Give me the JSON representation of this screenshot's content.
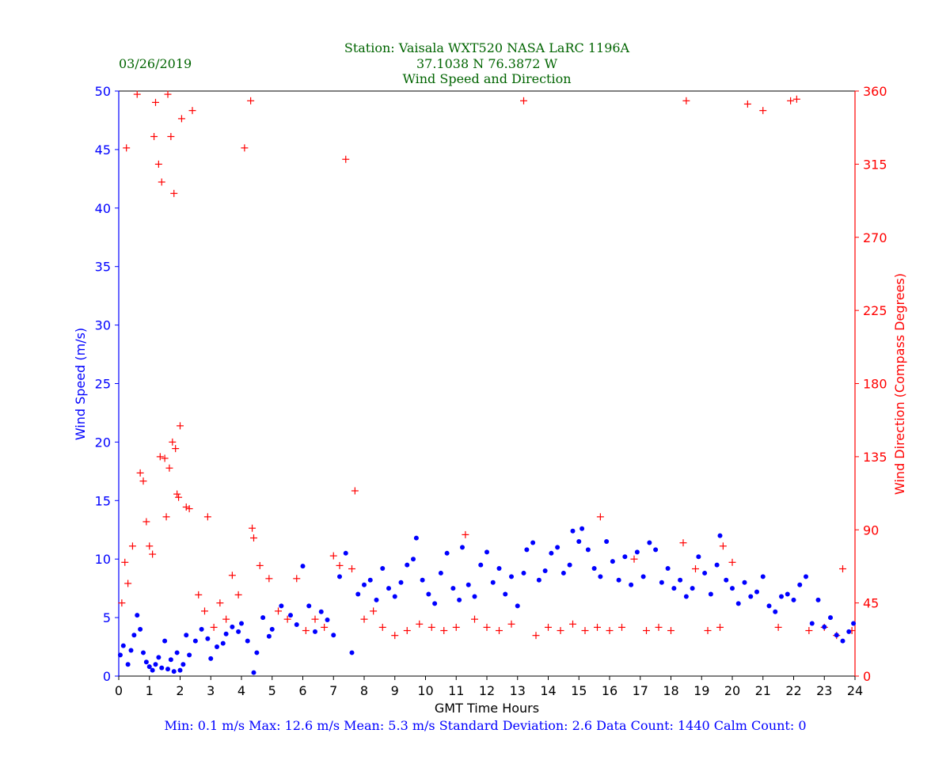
{
  "header": {
    "date": "03/26/2019",
    "station": "Station:  Vaisala WXT520  NASA LaRC 1196A",
    "location": "37.1038 N 76.3872 W",
    "subtitle": "Wind Speed and Direction"
  },
  "footer": {
    "stats": "Min: 0.1 m/s   Max: 12.6 m/s   Mean: 5.3 m/s  Standard Deviation: 2.6  Data Count: 1440  Calm Count:  0"
  },
  "colors": {
    "speed": "#0000ff",
    "direction": "#ff0000",
    "title": "#006400"
  },
  "chart_data": {
    "type": "scatter",
    "xlabel": "GMT Time Hours",
    "ylabel_left": "Wind Speed (m/s)",
    "ylabel_right": "Wind Direction (Compass Degrees)",
    "xlim": [
      0,
      24
    ],
    "ylim_left": [
      0,
      50
    ],
    "ylim_right": [
      0,
      360
    ],
    "x_ticks": [
      0,
      1,
      2,
      3,
      4,
      5,
      6,
      7,
      8,
      9,
      10,
      11,
      12,
      13,
      14,
      15,
      16,
      17,
      18,
      19,
      20,
      21,
      22,
      23,
      24
    ],
    "y_ticks_left": [
      0,
      5,
      10,
      15,
      20,
      25,
      30,
      35,
      40,
      45,
      50
    ],
    "y_ticks_right": [
      0,
      45,
      90,
      135,
      180,
      225,
      270,
      315,
      360
    ],
    "grid": false,
    "series": [
      {
        "name": "Wind Speed",
        "axis": "left",
        "marker": "dot",
        "points": [
          [
            0.05,
            1.8
          ],
          [
            0.15,
            2.6
          ],
          [
            0.3,
            1.0
          ],
          [
            0.4,
            2.2
          ],
          [
            0.5,
            3.5
          ],
          [
            0.6,
            5.2
          ],
          [
            0.7,
            4.0
          ],
          [
            0.8,
            2.0
          ],
          [
            0.9,
            1.2
          ],
          [
            1.0,
            0.8
          ],
          [
            1.1,
            0.5
          ],
          [
            1.2,
            1.0
          ],
          [
            1.3,
            1.6
          ],
          [
            1.4,
            0.7
          ],
          [
            1.5,
            3.0
          ],
          [
            1.6,
            0.6
          ],
          [
            1.7,
            1.4
          ],
          [
            1.8,
            0.4
          ],
          [
            1.9,
            2.0
          ],
          [
            2.0,
            0.5
          ],
          [
            2.1,
            1.0
          ],
          [
            2.2,
            3.5
          ],
          [
            2.3,
            1.8
          ],
          [
            2.5,
            3.0
          ],
          [
            2.7,
            4.0
          ],
          [
            2.9,
            3.2
          ],
          [
            3.0,
            1.5
          ],
          [
            3.2,
            2.5
          ],
          [
            3.4,
            2.8
          ],
          [
            3.5,
            3.6
          ],
          [
            3.7,
            4.2
          ],
          [
            3.9,
            3.8
          ],
          [
            4.0,
            4.5
          ],
          [
            4.2,
            3.0
          ],
          [
            4.4,
            0.3
          ],
          [
            4.5,
            2.0
          ],
          [
            4.7,
            5.0
          ],
          [
            4.9,
            3.4
          ],
          [
            5.0,
            4.0
          ],
          [
            5.3,
            6.0
          ],
          [
            5.6,
            5.2
          ],
          [
            5.8,
            4.4
          ],
          [
            6.0,
            9.4
          ],
          [
            6.2,
            6.0
          ],
          [
            6.4,
            3.8
          ],
          [
            6.6,
            5.5
          ],
          [
            6.8,
            4.8
          ],
          [
            7.0,
            3.5
          ],
          [
            7.2,
            8.5
          ],
          [
            7.4,
            10.5
          ],
          [
            7.6,
            2.0
          ],
          [
            7.8,
            7.0
          ],
          [
            8.0,
            7.8
          ],
          [
            8.2,
            8.2
          ],
          [
            8.4,
            6.5
          ],
          [
            8.6,
            9.2
          ],
          [
            8.8,
            7.5
          ],
          [
            9.0,
            6.8
          ],
          [
            9.2,
            8.0
          ],
          [
            9.4,
            9.5
          ],
          [
            9.6,
            10.0
          ],
          [
            9.7,
            11.8
          ],
          [
            9.9,
            8.2
          ],
          [
            10.1,
            7.0
          ],
          [
            10.3,
            6.2
          ],
          [
            10.5,
            8.8
          ],
          [
            10.7,
            10.5
          ],
          [
            10.9,
            7.5
          ],
          [
            11.1,
            6.5
          ],
          [
            11.2,
            11.0
          ],
          [
            11.4,
            7.8
          ],
          [
            11.6,
            6.8
          ],
          [
            11.8,
            9.5
          ],
          [
            12.0,
            10.6
          ],
          [
            12.2,
            8.0
          ],
          [
            12.4,
            9.2
          ],
          [
            12.6,
            7.0
          ],
          [
            12.8,
            8.5
          ],
          [
            13.0,
            6.0
          ],
          [
            13.2,
            8.8
          ],
          [
            13.3,
            10.8
          ],
          [
            13.5,
            11.4
          ],
          [
            13.7,
            8.2
          ],
          [
            13.9,
            9.0
          ],
          [
            14.1,
            10.5
          ],
          [
            14.3,
            11.0
          ],
          [
            14.5,
            8.8
          ],
          [
            14.7,
            9.5
          ],
          [
            14.8,
            12.4
          ],
          [
            15.0,
            11.5
          ],
          [
            15.1,
            12.6
          ],
          [
            15.3,
            10.8
          ],
          [
            15.5,
            9.2
          ],
          [
            15.7,
            8.5
          ],
          [
            15.9,
            11.5
          ],
          [
            16.1,
            9.8
          ],
          [
            16.3,
            8.2
          ],
          [
            16.5,
            10.2
          ],
          [
            16.7,
            7.8
          ],
          [
            16.9,
            10.6
          ],
          [
            17.1,
            8.5
          ],
          [
            17.3,
            11.4
          ],
          [
            17.5,
            10.8
          ],
          [
            17.7,
            8.0
          ],
          [
            17.9,
            9.2
          ],
          [
            18.1,
            7.5
          ],
          [
            18.3,
            8.2
          ],
          [
            18.5,
            6.8
          ],
          [
            18.7,
            7.5
          ],
          [
            18.9,
            10.2
          ],
          [
            19.1,
            8.8
          ],
          [
            19.3,
            7.0
          ],
          [
            19.5,
            9.5
          ],
          [
            19.6,
            12.0
          ],
          [
            19.8,
            8.2
          ],
          [
            20.0,
            7.5
          ],
          [
            20.2,
            6.2
          ],
          [
            20.4,
            8.0
          ],
          [
            20.6,
            6.8
          ],
          [
            20.8,
            7.2
          ],
          [
            21.0,
            8.5
          ],
          [
            21.2,
            6.0
          ],
          [
            21.4,
            5.5
          ],
          [
            21.6,
            6.8
          ],
          [
            21.8,
            7.0
          ],
          [
            22.0,
            6.5
          ],
          [
            22.2,
            7.8
          ],
          [
            22.4,
            8.5
          ],
          [
            22.6,
            4.5
          ],
          [
            22.8,
            6.5
          ],
          [
            23.0,
            4.2
          ],
          [
            23.2,
            5.0
          ],
          [
            23.4,
            3.5
          ],
          [
            23.6,
            3.0
          ],
          [
            23.8,
            3.8
          ],
          [
            23.95,
            4.5
          ]
        ]
      },
      {
        "name": "Wind Direction",
        "axis": "right",
        "marker": "plus",
        "points": [
          [
            0.1,
            45
          ],
          [
            0.2,
            70
          ],
          [
            0.25,
            325
          ],
          [
            0.3,
            57
          ],
          [
            0.45,
            80
          ],
          [
            0.6,
            358
          ],
          [
            0.7,
            125
          ],
          [
            0.8,
            120
          ],
          [
            0.9,
            95
          ],
          [
            1.0,
            80
          ],
          [
            1.1,
            75
          ],
          [
            1.15,
            332
          ],
          [
            1.2,
            353
          ],
          [
            1.3,
            315
          ],
          [
            1.35,
            135
          ],
          [
            1.4,
            304
          ],
          [
            1.5,
            134
          ],
          [
            1.55,
            98
          ],
          [
            1.6,
            358
          ],
          [
            1.65,
            128
          ],
          [
            1.7,
            332
          ],
          [
            1.75,
            144
          ],
          [
            1.8,
            297
          ],
          [
            1.85,
            140
          ],
          [
            1.9,
            112
          ],
          [
            1.95,
            110
          ],
          [
            2.0,
            154
          ],
          [
            2.05,
            343
          ],
          [
            2.2,
            104
          ],
          [
            2.3,
            103
          ],
          [
            2.4,
            348
          ],
          [
            2.6,
            50
          ],
          [
            2.8,
            40
          ],
          [
            2.9,
            98
          ],
          [
            3.1,
            30
          ],
          [
            3.3,
            45
          ],
          [
            3.5,
            35
          ],
          [
            3.7,
            62
          ],
          [
            3.9,
            50
          ],
          [
            4.1,
            325
          ],
          [
            4.3,
            354
          ],
          [
            4.35,
            91
          ],
          [
            4.4,
            85
          ],
          [
            4.6,
            68
          ],
          [
            4.9,
            60
          ],
          [
            5.2,
            40
          ],
          [
            5.5,
            35
          ],
          [
            5.8,
            60
          ],
          [
            6.1,
            28
          ],
          [
            6.4,
            35
          ],
          [
            6.7,
            30
          ],
          [
            7.0,
            74
          ],
          [
            7.2,
            68
          ],
          [
            7.4,
            318
          ],
          [
            7.6,
            66
          ],
          [
            7.7,
            114
          ],
          [
            8.0,
            35
          ],
          [
            8.3,
            40
          ],
          [
            8.6,
            30
          ],
          [
            9.0,
            25
          ],
          [
            9.4,
            28
          ],
          [
            9.8,
            32
          ],
          [
            10.2,
            30
          ],
          [
            10.6,
            28
          ],
          [
            11.0,
            30
          ],
          [
            11.3,
            87
          ],
          [
            11.6,
            35
          ],
          [
            12.0,
            30
          ],
          [
            12.4,
            28
          ],
          [
            12.8,
            32
          ],
          [
            13.2,
            354
          ],
          [
            13.6,
            25
          ],
          [
            14.0,
            30
          ],
          [
            14.4,
            28
          ],
          [
            14.8,
            32
          ],
          [
            15.2,
            28
          ],
          [
            15.6,
            30
          ],
          [
            15.7,
            98
          ],
          [
            16.0,
            28
          ],
          [
            16.4,
            30
          ],
          [
            16.8,
            72
          ],
          [
            17.2,
            28
          ],
          [
            17.6,
            30
          ],
          [
            18.0,
            28
          ],
          [
            18.4,
            82
          ],
          [
            18.5,
            354
          ],
          [
            18.8,
            66
          ],
          [
            19.2,
            28
          ],
          [
            19.6,
            30
          ],
          [
            19.7,
            80
          ],
          [
            20.0,
            70
          ],
          [
            20.5,
            352
          ],
          [
            21.0,
            348
          ],
          [
            21.5,
            30
          ],
          [
            21.9,
            354
          ],
          [
            22.1,
            355
          ],
          [
            22.5,
            28
          ],
          [
            23.0,
            30
          ],
          [
            23.4,
            25
          ],
          [
            23.6,
            66
          ],
          [
            23.9,
            28
          ]
        ]
      }
    ]
  }
}
